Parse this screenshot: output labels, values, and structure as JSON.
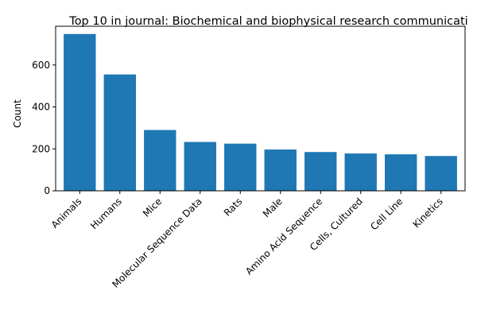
{
  "chart_data": {
    "type": "bar",
    "title": "Top 10 in journal: Biochemical and biophysical research communicati",
    "xlabel": "",
    "ylabel": "Count",
    "categories": [
      "Animals",
      "Humans",
      "Mice",
      "Molecular Sequence Data",
      "Rats",
      "Male",
      "Amino Acid Sequence",
      "Cells, Cultured",
      "Cell Line",
      "Kinetics"
    ],
    "values": [
      748,
      555,
      290,
      233,
      225,
      197,
      185,
      178,
      174,
      166
    ],
    "ylim": [
      0,
      785
    ],
    "yticks": [
      0,
      200,
      400,
      600
    ],
    "bar_color": "#1f77b4",
    "grid": false,
    "legend": false
  }
}
